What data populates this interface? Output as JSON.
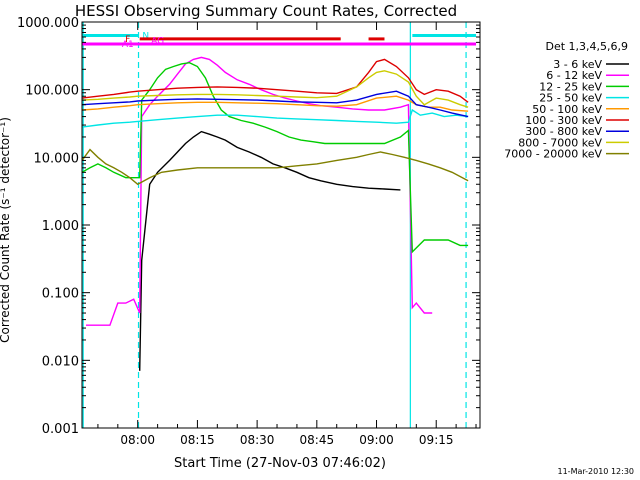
{
  "chart_data": {
    "type": "line",
    "title": "HESSI Observing Summary Count Rates, Corrected",
    "xlabel": "Start Time (27-Nov-03 07:46:02)",
    "ylabel": "Corrected Count Rate (s⁻¹ detector⁻¹)",
    "ylog": true,
    "ylim": [
      0.001,
      1000
    ],
    "xlim_min": [
      -14,
      86
    ],
    "x_ticks": [
      {
        "m": 0,
        "label": "08:00"
      },
      {
        "m": 15,
        "label": "08:15"
      },
      {
        "m": 30,
        "label": "08:30"
      },
      {
        "m": 45,
        "label": "08:45"
      },
      {
        "m": 60,
        "label": "09:00"
      },
      {
        "m": 75,
        "label": "09:15"
      }
    ],
    "y_ticks": [
      {
        "v": 1000,
        "label": "1000.000"
      },
      {
        "v": 100,
        "label": "100.000"
      },
      {
        "v": 10,
        "label": "10.000"
      },
      {
        "v": 1,
        "label": "1.000"
      },
      {
        "v": 0.1,
        "label": "0.100"
      },
      {
        "v": 0.01,
        "label": "0.010"
      },
      {
        "v": 0.001,
        "label": "0.001"
      }
    ],
    "legend_title": "Det 1,3,4,5,6,9",
    "legend_position": "right",
    "date_stamp": "11-Mar-2010 12:30",
    "vlines": [
      {
        "m": 0.2,
        "color": "#00e5e5",
        "style": "dashed"
      },
      {
        "m": 68.5,
        "color": "#00e5e5",
        "style": "solid"
      },
      {
        "m": 82.5,
        "color": "#00e5e5",
        "style": "dashed"
      },
      {
        "m": -13.7,
        "color": "#00e5e5",
        "style": "solid"
      }
    ],
    "flag_bars": [
      {
        "label": "N",
        "color": "#00e5e5",
        "segments": [
          [
            -14,
            0.2
          ],
          [
            69,
            85
          ]
        ],
        "y": 1.6,
        "label_m": 2
      },
      {
        "label": "F",
        "color": "#dd0000",
        "segments": [
          [
            0.5,
            51
          ],
          [
            58,
            62
          ]
        ],
        "y": 1.5,
        "label_m": -2.5
      },
      {
        "label": "AG",
        "color": "#ff00ff",
        "segments": [],
        "y": 1.45,
        "label_m": 5
      },
      {
        "label": "A1",
        "color": "#ff00ff",
        "segments": [
          [
            -14,
            85
          ]
        ],
        "y": 1.35,
        "label_m": -2.5
      }
    ],
    "series": [
      {
        "name": "3 - 6 keV",
        "color": "#000000",
        "x": [
          0.5,
          1,
          3,
          5,
          8,
          10,
          12,
          14,
          16,
          18,
          20,
          22,
          25,
          28,
          31,
          34,
          37,
          40,
          43,
          46,
          50,
          54,
          58,
          62,
          66
        ],
        "y": [
          0.007,
          0.3,
          4,
          6,
          9,
          12,
          16,
          20,
          24,
          22,
          20,
          18,
          14,
          12,
          10,
          8,
          7,
          6,
          5,
          4.5,
          4,
          3.7,
          3.5,
          3.4,
          3.3
        ]
      },
      {
        "name": "6 - 12 keV",
        "color": "#ff00ff",
        "x": [
          -13,
          -7,
          -5,
          -3,
          -1,
          0.5,
          1,
          3,
          5,
          8,
          10,
          12,
          14,
          16,
          18,
          20,
          22,
          25,
          28,
          31,
          34,
          37,
          40,
          43,
          46,
          50,
          54,
          58,
          62,
          66,
          68,
          69,
          70,
          72,
          74
        ],
        "y": [
          0.033,
          0.033,
          0.07,
          0.07,
          0.08,
          0.05,
          40,
          60,
          80,
          120,
          170,
          240,
          280,
          300,
          280,
          230,
          180,
          140,
          120,
          100,
          85,
          75,
          68,
          62,
          58,
          55,
          52,
          50,
          50,
          55,
          60,
          0.06,
          0.07,
          0.05,
          0.05
        ]
      },
      {
        "name": "12 - 25 keV",
        "color": "#00cc00",
        "x": [
          -14,
          -12,
          -10,
          -8,
          -6,
          -3,
          -1,
          0.5,
          1,
          3,
          5,
          7,
          9,
          11,
          13,
          15,
          17,
          19,
          21,
          23,
          26,
          29,
          32,
          35,
          38,
          41,
          44,
          47,
          50,
          54,
          58,
          62,
          66,
          68,
          69,
          72,
          75,
          78,
          81,
          83
        ],
        "y": [
          6,
          7,
          8,
          7,
          6,
          5,
          5,
          5,
          70,
          100,
          150,
          200,
          220,
          240,
          250,
          220,
          150,
          80,
          50,
          40,
          35,
          32,
          28,
          24,
          20,
          18,
          17,
          16,
          16,
          16,
          16,
          16,
          20,
          25,
          0.4,
          0.6,
          0.6,
          0.6,
          0.5,
          0.5
        ]
      },
      {
        "name": "25 - 50 keV",
        "color": "#00e5e5",
        "x": [
          -14,
          -10,
          -6,
          -2,
          0,
          5,
          10,
          15,
          20,
          25,
          30,
          35,
          40,
          45,
          50,
          55,
          60,
          65,
          68,
          69,
          71,
          74,
          77,
          80,
          83
        ],
        "y": [
          28,
          30,
          32,
          33,
          34,
          36,
          38,
          40,
          42,
          42,
          40,
          38,
          37,
          36,
          35,
          34,
          33,
          32,
          33,
          50,
          42,
          45,
          40,
          42,
          40
        ]
      },
      {
        "name": "50 - 100 keV",
        "color": "#ff9900",
        "x": [
          -14,
          -10,
          -6,
          -2,
          0,
          5,
          10,
          15,
          20,
          25,
          30,
          35,
          40,
          45,
          50,
          55,
          60,
          65,
          68,
          70,
          73,
          76,
          79,
          83
        ],
        "y": [
          50,
          52,
          55,
          58,
          60,
          62,
          64,
          65,
          65,
          64,
          63,
          62,
          60,
          58,
          57,
          60,
          75,
          80,
          70,
          60,
          55,
          55,
          50,
          48
        ]
      },
      {
        "name": "100 - 300 keV",
        "color": "#dd0000",
        "x": [
          -14,
          -10,
          -6,
          -2,
          0,
          5,
          10,
          15,
          20,
          25,
          30,
          35,
          40,
          45,
          50,
          55,
          58,
          60,
          62,
          65,
          68,
          70,
          72,
          75,
          78,
          81,
          83
        ],
        "y": [
          75,
          80,
          85,
          92,
          95,
          100,
          105,
          108,
          110,
          108,
          105,
          100,
          95,
          90,
          88,
          110,
          180,
          260,
          280,
          220,
          150,
          100,
          85,
          100,
          95,
          80,
          65
        ]
      },
      {
        "name": "300 - 800 keV",
        "color": "#0000dd",
        "x": [
          -14,
          -10,
          -6,
          -2,
          0,
          5,
          10,
          15,
          20,
          25,
          30,
          35,
          40,
          45,
          50,
          55,
          60,
          65,
          68,
          70,
          73,
          76,
          79,
          83
        ],
        "y": [
          60,
          62,
          64,
          66,
          68,
          70,
          72,
          73,
          72,
          71,
          70,
          68,
          66,
          65,
          64,
          70,
          85,
          95,
          80,
          60,
          55,
          50,
          45,
          40
        ]
      },
      {
        "name": "800 - 7000 keV",
        "color": "#cccc00",
        "x": [
          -14,
          -10,
          -6,
          -2,
          0,
          5,
          10,
          15,
          20,
          25,
          30,
          35,
          40,
          45,
          50,
          55,
          58,
          60,
          62,
          65,
          68,
          70,
          72,
          75,
          78,
          81,
          83
        ],
        "y": [
          70,
          72,
          75,
          78,
          80,
          82,
          84,
          85,
          85,
          84,
          82,
          80,
          78,
          76,
          80,
          110,
          150,
          180,
          190,
          170,
          130,
          80,
          60,
          75,
          70,
          60,
          55
        ]
      },
      {
        "name": "7000 - 20000 keV",
        "color": "#808000",
        "x": [
          -14,
          -12,
          -10,
          -8,
          -6,
          -4,
          -2,
          0,
          3,
          6,
          10,
          15,
          20,
          25,
          30,
          35,
          40,
          45,
          50,
          55,
          58,
          61,
          64,
          67,
          70,
          73,
          76,
          79,
          83
        ],
        "y": [
          9,
          13,
          10,
          8,
          7,
          6,
          5,
          4,
          5,
          6,
          6.5,
          7,
          7,
          7,
          7,
          7,
          7.5,
          8,
          9,
          10,
          11,
          12,
          11,
          10,
          9,
          8,
          7,
          6,
          4.5
        ]
      }
    ]
  }
}
